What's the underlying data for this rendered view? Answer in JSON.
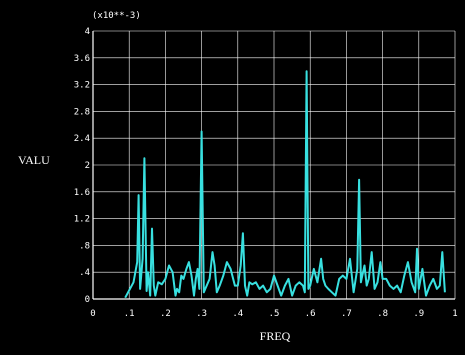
{
  "chart_data": {
    "type": "line",
    "exponent_label": "(x10**-3)",
    "xlabel": "FREQ",
    "ylabel": "VALU",
    "xlim": [
      0,
      1
    ],
    "ylim": [
      0,
      4
    ],
    "grid": true,
    "x_ticks": [
      "0",
      ".1",
      ".2",
      ".3",
      ".4",
      ".5",
      ".6",
      ".7",
      ".8",
      ".9",
      "1"
    ],
    "y_ticks": [
      "0",
      ".4",
      ".8",
      "1.2",
      "1.6",
      "2",
      "2.4",
      "2.8",
      "3.2",
      "3.6",
      "4"
    ],
    "line_color": "#38e0e0",
    "series": [
      {
        "x": [
          0.089,
          0.112,
          0.122,
          0.126,
          0.13,
          0.137,
          0.142,
          0.148,
          0.152,
          0.158,
          0.163,
          0.168,
          0.172,
          0.18,
          0.19,
          0.2,
          0.21,
          0.22,
          0.228,
          0.232,
          0.238,
          0.244,
          0.25,
          0.258,
          0.265,
          0.272,
          0.279,
          0.284,
          0.289,
          0.294,
          0.3,
          0.306,
          0.314,
          0.322,
          0.33,
          0.336,
          0.342,
          0.35,
          0.36,
          0.37,
          0.38,
          0.392,
          0.4,
          0.408,
          0.414,
          0.42,
          0.426,
          0.432,
          0.44,
          0.45,
          0.46,
          0.47,
          0.48,
          0.49,
          0.5,
          0.51,
          0.52,
          0.53,
          0.54,
          0.55,
          0.56,
          0.57,
          0.58,
          0.585,
          0.59,
          0.595,
          0.6,
          0.61,
          0.62,
          0.63,
          0.636,
          0.642,
          0.65,
          0.66,
          0.67,
          0.68,
          0.69,
          0.7,
          0.71,
          0.72,
          0.73,
          0.735,
          0.74,
          0.744,
          0.75,
          0.756,
          0.762,
          0.77,
          0.778,
          0.786,
          0.794,
          0.8,
          0.81,
          0.82,
          0.83,
          0.84,
          0.85,
          0.86,
          0.87,
          0.88,
          0.89,
          0.895,
          0.9,
          0.905,
          0.91,
          0.92,
          0.93,
          0.94,
          0.95,
          0.958,
          0.965,
          0.972
        ],
        "y": [
          0.02,
          0.25,
          0.55,
          1.55,
          0.15,
          0.6,
          2.1,
          0.12,
          0.4,
          0.05,
          1.05,
          0.2,
          0.05,
          0.25,
          0.22,
          0.3,
          0.5,
          0.4,
          0.05,
          0.15,
          0.1,
          0.35,
          0.3,
          0.45,
          0.55,
          0.35,
          0.05,
          0.3,
          0.45,
          0.15,
          2.5,
          0.1,
          0.2,
          0.3,
          0.7,
          0.5,
          0.1,
          0.2,
          0.35,
          0.55,
          0.45,
          0.2,
          0.2,
          0.5,
          0.98,
          0.2,
          0.05,
          0.25,
          0.22,
          0.25,
          0.15,
          0.2,
          0.1,
          0.15,
          0.35,
          0.2,
          0.05,
          0.2,
          0.3,
          0.05,
          0.2,
          0.25,
          0.2,
          0.1,
          3.4,
          0.15,
          0.2,
          0.45,
          0.25,
          0.6,
          0.3,
          0.2,
          0.15,
          0.1,
          0.05,
          0.3,
          0.35,
          0.3,
          0.6,
          0.1,
          0.45,
          1.78,
          0.25,
          0.35,
          0.5,
          0.2,
          0.3,
          0.7,
          0.15,
          0.25,
          0.55,
          0.3,
          0.3,
          0.2,
          0.15,
          0.2,
          0.1,
          0.35,
          0.55,
          0.25,
          0.1,
          0.75,
          0.15,
          0.3,
          0.45,
          0.05,
          0.2,
          0.3,
          0.15,
          0.2,
          0.7,
          0.1
        ]
      }
    ]
  }
}
